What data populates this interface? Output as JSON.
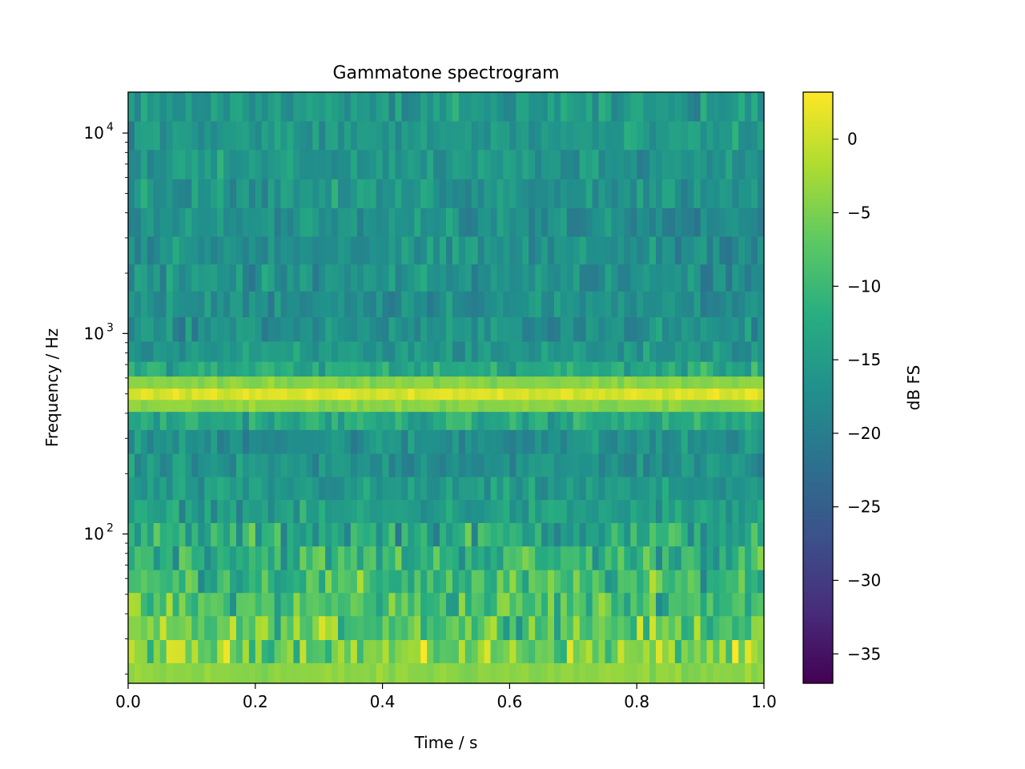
{
  "chart_data": {
    "type": "heatmap",
    "title": "Gammatone spectrogram",
    "xlabel": "Time / s",
    "ylabel": "Frequency / Hz",
    "x_scale": "linear",
    "y_scale": "log",
    "xlim": [
      0.0,
      1.0
    ],
    "ylim": [
      18,
      16000
    ],
    "x_ticks": [
      {
        "value": 0.0,
        "label": "0.0"
      },
      {
        "value": 0.2,
        "label": "0.2"
      },
      {
        "value": 0.4,
        "label": "0.4"
      },
      {
        "value": 0.6,
        "label": "0.6"
      },
      {
        "value": 0.8,
        "label": "0.8"
      },
      {
        "value": 1.0,
        "label": "1.0"
      }
    ],
    "y_ticks": [
      {
        "value": 100,
        "base": "10",
        "exp": "2"
      },
      {
        "value": 1000,
        "base": "10",
        "exp": "3"
      },
      {
        "value": 10000,
        "base": "10",
        "exp": "4"
      }
    ],
    "grid": false,
    "colormap": "viridis",
    "colorbar": {
      "label": "dB FS",
      "range": [
        -37,
        3.2
      ],
      "ticks": [
        {
          "value": 0,
          "label": "0"
        },
        {
          "value": -5,
          "label": "−5"
        },
        {
          "value": -10,
          "label": "−10"
        },
        {
          "value": -15,
          "label": "−15"
        },
        {
          "value": -20,
          "label": "−20"
        },
        {
          "value": -25,
          "label": "−25"
        },
        {
          "value": -30,
          "label": "−30"
        },
        {
          "value": -35,
          "label": "−35"
        }
      ]
    },
    "time_frames": 100,
    "frequency_bands": [
      {
        "center_hz": 20,
        "level_db": -4
      },
      {
        "center_hz": 26,
        "level_db": -5
      },
      {
        "center_hz": 34,
        "level_db": -7
      },
      {
        "center_hz": 45,
        "level_db": -9
      },
      {
        "center_hz": 58,
        "level_db": -10
      },
      {
        "center_hz": 76,
        "level_db": -11
      },
      {
        "center_hz": 100,
        "level_db": -13
      },
      {
        "center_hz": 130,
        "level_db": -15
      },
      {
        "center_hz": 170,
        "level_db": -16
      },
      {
        "center_hz": 220,
        "level_db": -17
      },
      {
        "center_hz": 290,
        "level_db": -17
      },
      {
        "center_hz": 380,
        "level_db": -13
      },
      {
        "center_hz": 440,
        "level_db": -4
      },
      {
        "center_hz": 500,
        "level_db": 1
      },
      {
        "center_hz": 570,
        "level_db": -4
      },
      {
        "center_hz": 660,
        "level_db": -13
      },
      {
        "center_hz": 800,
        "level_db": -16
      },
      {
        "center_hz": 1050,
        "level_db": -17
      },
      {
        "center_hz": 1400,
        "level_db": -17
      },
      {
        "center_hz": 1900,
        "level_db": -17
      },
      {
        "center_hz": 2600,
        "level_db": -17
      },
      {
        "center_hz": 3600,
        "level_db": -17
      },
      {
        "center_hz": 5000,
        "level_db": -16
      },
      {
        "center_hz": 7000,
        "level_db": -16
      },
      {
        "center_hz": 9800,
        "level_db": -16
      },
      {
        "center_hz": 13500,
        "level_db": -16
      }
    ]
  }
}
